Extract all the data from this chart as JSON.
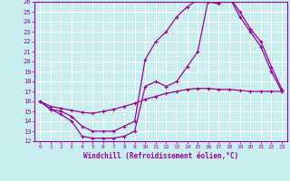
{
  "xlabel": "Windchill (Refroidissement éolien,°C)",
  "bg_color": "#c8eef0",
  "grid_color": "#b8dfe0",
  "line_color": "#990099",
  "marker": "+",
  "xlim": [
    -0.5,
    23.5
  ],
  "ylim": [
    12,
    26
  ],
  "xticks": [
    0,
    1,
    2,
    3,
    4,
    5,
    6,
    7,
    8,
    9,
    10,
    11,
    12,
    13,
    14,
    15,
    16,
    17,
    18,
    19,
    20,
    21,
    22,
    23
  ],
  "yticks": [
    12,
    13,
    14,
    15,
    16,
    17,
    18,
    19,
    20,
    21,
    22,
    23,
    24,
    25,
    26
  ],
  "line1_x": [
    0,
    1,
    2,
    3,
    4,
    5,
    6,
    7,
    8,
    9,
    10,
    11,
    12,
    13,
    14,
    15,
    16,
    17,
    18,
    19,
    20,
    21,
    22,
    23
  ],
  "line1_y": [
    16.0,
    15.2,
    14.7,
    14.0,
    12.5,
    12.3,
    12.3,
    12.3,
    12.5,
    13.0,
    17.5,
    18.0,
    17.5,
    18.0,
    19.5,
    21.0,
    26.2,
    26.0,
    26.5,
    24.5,
    23.0,
    21.5,
    19.0,
    17.0
  ],
  "line2_x": [
    0,
    1,
    2,
    3,
    4,
    5,
    6,
    7,
    8,
    9,
    10,
    11,
    12,
    13,
    14,
    15,
    16,
    17,
    18,
    19,
    20,
    21,
    22,
    23
  ],
  "line2_y": [
    16.0,
    15.2,
    15.0,
    14.5,
    13.5,
    13.0,
    13.0,
    13.0,
    13.5,
    14.0,
    20.2,
    22.0,
    23.0,
    24.5,
    25.5,
    26.2,
    26.0,
    25.8,
    26.5,
    25.0,
    23.3,
    22.0,
    19.5,
    17.2
  ],
  "line3_x": [
    0,
    1,
    2,
    3,
    4,
    5,
    6,
    7,
    8,
    9,
    10,
    11,
    12,
    13,
    14,
    15,
    16,
    17,
    18,
    19,
    20,
    21,
    22,
    23
  ],
  "line3_y": [
    16.0,
    15.5,
    15.3,
    15.1,
    14.9,
    14.8,
    15.0,
    15.2,
    15.5,
    15.8,
    16.2,
    16.5,
    16.8,
    17.0,
    17.2,
    17.3,
    17.3,
    17.2,
    17.2,
    17.1,
    17.0,
    17.0,
    17.0,
    17.0
  ]
}
